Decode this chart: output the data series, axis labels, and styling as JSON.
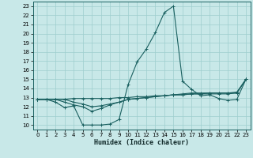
{
  "xlabel": "Humidex (Indice chaleur)",
  "xlim": [
    -0.5,
    23.5
  ],
  "ylim": [
    9.5,
    23.5
  ],
  "xticks": [
    0,
    1,
    2,
    3,
    4,
    5,
    6,
    7,
    8,
    9,
    10,
    11,
    12,
    13,
    14,
    15,
    16,
    17,
    18,
    19,
    20,
    21,
    22,
    23
  ],
  "yticks": [
    10,
    11,
    12,
    13,
    14,
    15,
    16,
    17,
    18,
    19,
    20,
    21,
    22,
    23
  ],
  "background_color": "#c8e8e8",
  "grid_color": "#9ecece",
  "line_color": "#1a6060",
  "lines": [
    {
      "x": [
        0,
        1,
        2,
        3,
        4,
        5,
        6,
        7,
        8,
        9,
        10,
        11,
        12,
        13,
        14,
        15,
        16,
        17,
        18,
        19,
        20,
        21,
        22,
        23
      ],
      "y": [
        12.8,
        12.8,
        12.5,
        11.9,
        12.1,
        10.0,
        10.0,
        10.0,
        10.1,
        10.6,
        14.4,
        16.9,
        18.3,
        20.1,
        22.3,
        23.0,
        14.8,
        13.9,
        13.2,
        13.3,
        12.9,
        12.7,
        12.8,
        15.0
      ]
    },
    {
      "x": [
        0,
        1,
        2,
        3,
        4,
        5,
        6,
        7,
        8,
        9,
        10,
        11,
        12,
        13,
        14,
        15,
        16,
        17,
        18,
        19,
        20,
        21,
        22,
        23
      ],
      "y": [
        12.8,
        12.8,
        12.8,
        12.8,
        12.9,
        12.9,
        12.9,
        12.9,
        12.9,
        13.0,
        13.0,
        13.1,
        13.1,
        13.2,
        13.2,
        13.3,
        13.3,
        13.4,
        13.4,
        13.5,
        13.5,
        13.5,
        13.6,
        15.0
      ]
    },
    {
      "x": [
        0,
        1,
        2,
        3,
        4,
        5,
        6,
        7,
        8,
        9,
        10,
        11,
        12,
        13,
        14,
        15,
        16,
        17,
        18,
        19,
        20,
        21,
        22,
        23
      ],
      "y": [
        12.8,
        12.8,
        12.8,
        12.5,
        12.2,
        12.0,
        11.5,
        11.8,
        12.2,
        12.5,
        12.8,
        12.9,
        13.0,
        13.1,
        13.2,
        13.3,
        13.4,
        13.5,
        13.5,
        13.5,
        13.5,
        13.5,
        13.5,
        15.0
      ]
    },
    {
      "x": [
        0,
        1,
        2,
        3,
        4,
        5,
        6,
        7,
        8,
        9,
        10,
        11,
        12,
        13,
        14,
        15,
        16,
        17,
        18,
        19,
        20,
        21,
        22,
        23
      ],
      "y": [
        12.8,
        12.8,
        12.8,
        12.8,
        12.5,
        12.3,
        12.0,
        12.1,
        12.3,
        12.5,
        12.8,
        12.9,
        13.0,
        13.1,
        13.2,
        13.3,
        13.3,
        13.4,
        13.4,
        13.4,
        13.4,
        13.4,
        13.5,
        15.0
      ]
    }
  ]
}
